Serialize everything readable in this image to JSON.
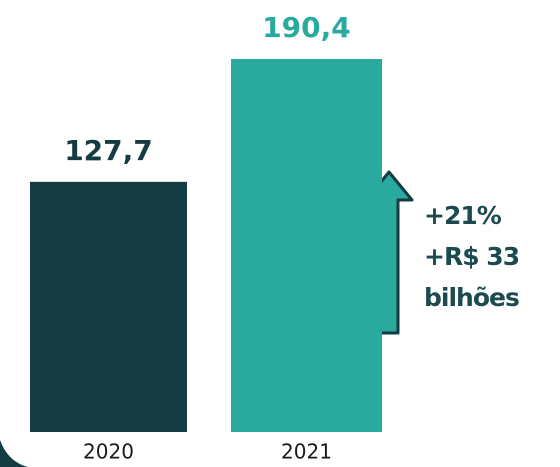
{
  "chart_data": {
    "type": "bar",
    "categories": [
      "2020",
      "2021"
    ],
    "values": [
      127.7,
      190.4
    ],
    "value_labels": [
      "127,7",
      "190,4"
    ],
    "colors": [
      "#143c42",
      "#2aa99e"
    ],
    "annotations": [
      "+21%",
      "+R$ 33",
      "bilhões"
    ]
  }
}
